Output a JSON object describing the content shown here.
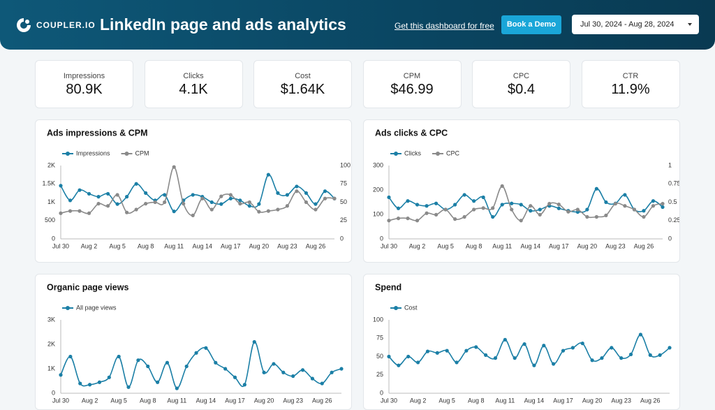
{
  "header": {
    "logo": "COUPLER.IO",
    "title": "LinkedIn page and ads analytics",
    "link": "Get this dashboard for free",
    "button": "Book a Demo",
    "date_range": "Jul 30, 2024 - Aug 28, 2024"
  },
  "kpis": [
    {
      "label": "Impressions",
      "value": "80.9K"
    },
    {
      "label": "Clicks",
      "value": "4.1K"
    },
    {
      "label": "Cost",
      "value": "$1.64K"
    },
    {
      "label": "CPM",
      "value": "$46.99"
    },
    {
      "label": "CPC",
      "value": "$0.4"
    },
    {
      "label": "CTR",
      "value": "11.9%"
    }
  ],
  "chart_data": [
    {
      "type": "line",
      "title": "Ads impressions & CPM",
      "categories": [
        "Jul 30",
        null,
        null,
        "Aug 2",
        null,
        null,
        "Aug 5",
        null,
        null,
        "Aug 8",
        null,
        null,
        "Aug 11",
        null,
        null,
        "Aug 14",
        null,
        null,
        "Aug 17",
        null,
        null,
        "Aug 20",
        null,
        null,
        "Aug 23",
        null,
        null,
        "Aug 26",
        null,
        null
      ],
      "series": [
        {
          "name": "Impressions",
          "color": "#1b7fa6",
          "values": [
            1450,
            1050,
            1330,
            1230,
            1150,
            1230,
            950,
            1150,
            1500,
            1250,
            1050,
            1200,
            750,
            1050,
            1200,
            1150,
            1000,
            950,
            1100,
            1050,
            900,
            950,
            1750,
            1250,
            1200,
            1430,
            1250,
            950,
            1300,
            1100
          ]
        },
        {
          "name": "CPM",
          "color": "#8a8a8a",
          "axis": "y2",
          "values": [
            35,
            38,
            38,
            35,
            48,
            45,
            60,
            36,
            40,
            48,
            50,
            50,
            98,
            48,
            32,
            55,
            40,
            58,
            60,
            48,
            50,
            37,
            38,
            40,
            45,
            65,
            50,
            40,
            55,
            55
          ]
        }
      ],
      "ylim": [
        0,
        2000
      ],
      "yticks": [
        0,
        500,
        {
          "value": 1000,
          "label": "1K"
        },
        {
          "value": 1500,
          "label": "1.5K"
        },
        {
          "value": 2000,
          "label": "2K"
        }
      ],
      "y2lim": [
        0,
        100
      ],
      "y2ticks": [
        0,
        25,
        50,
        75,
        100
      ],
      "legend": "top-left"
    },
    {
      "type": "line",
      "title": "Ads clicks & CPC",
      "categories": [
        "Jul 30",
        null,
        null,
        "Aug 2",
        null,
        null,
        "Aug 5",
        null,
        null,
        "Aug 8",
        null,
        null,
        "Aug 11",
        null,
        null,
        "Aug 14",
        null,
        null,
        "Aug 17",
        null,
        null,
        "Aug 20",
        null,
        null,
        "Aug 23",
        null,
        null,
        "Aug 26",
        null,
        null
      ],
      "series": [
        {
          "name": "Clicks",
          "color": "#1b7fa6",
          "values": [
            170,
            125,
            155,
            140,
            135,
            145,
            120,
            140,
            180,
            155,
            170,
            90,
            140,
            145,
            140,
            115,
            120,
            135,
            125,
            115,
            110,
            120,
            205,
            150,
            145,
            180,
            120,
            115,
            155,
            130
          ]
        },
        {
          "name": "CPC",
          "color": "#8a8a8a",
          "axis": "y2",
          "values": [
            0.25,
            0.28,
            0.28,
            0.25,
            0.35,
            0.33,
            0.4,
            0.27,
            0.3,
            0.4,
            0.42,
            0.42,
            0.72,
            0.4,
            0.25,
            0.45,
            0.33,
            0.48,
            0.47,
            0.37,
            0.4,
            0.3,
            0.3,
            0.32,
            0.48,
            0.45,
            0.4,
            0.3,
            0.45,
            0.48
          ]
        }
      ],
      "ylim": [
        0,
        300
      ],
      "yticks": [
        0,
        100,
        200,
        300
      ],
      "y2lim": [
        0,
        1
      ],
      "y2ticks": [
        0,
        0.25,
        0.5,
        0.75,
        1
      ],
      "legend": "top-left"
    },
    {
      "type": "line",
      "title": "Organic page views",
      "categories": [
        "Jul 30",
        null,
        null,
        "Aug 2",
        null,
        null,
        "Aug 5",
        null,
        null,
        "Aug 8",
        null,
        null,
        "Aug 11",
        null,
        null,
        "Aug 14",
        null,
        null,
        "Aug 17",
        null,
        null,
        "Aug 20",
        null,
        null,
        "Aug 23",
        null,
        null,
        "Aug 26",
        null,
        null
      ],
      "series": [
        {
          "name": "All page views",
          "color": "#1b7fa6",
          "values": [
            750,
            1500,
            400,
            350,
            450,
            650,
            1500,
            250,
            1350,
            1100,
            450,
            1250,
            200,
            1100,
            1650,
            1850,
            1250,
            1000,
            650,
            350,
            2100,
            850,
            1200,
            850,
            700,
            950,
            600,
            400,
            850,
            1000
          ]
        }
      ],
      "ylim": [
        0,
        3000
      ],
      "yticks": [
        0,
        {
          "value": 1000,
          "label": "1K"
        },
        {
          "value": 2000,
          "label": "2K"
        },
        {
          "value": 3000,
          "label": "3K"
        }
      ],
      "legend": "top-left"
    },
    {
      "type": "line",
      "title": "Spend",
      "categories": [
        "Jul 30",
        null,
        null,
        "Aug 2",
        null,
        null,
        "Aug 5",
        null,
        null,
        "Aug 8",
        null,
        null,
        "Aug 11",
        null,
        null,
        "Aug 14",
        null,
        null,
        "Aug 17",
        null,
        null,
        "Aug 20",
        null,
        null,
        "Aug 23",
        null,
        null,
        "Aug 26",
        null,
        null
      ],
      "series": [
        {
          "name": "Cost",
          "color": "#1b7fa6",
          "values": [
            50,
            38,
            50,
            42,
            57,
            55,
            58,
            42,
            58,
            63,
            52,
            48,
            73,
            48,
            67,
            38,
            65,
            40,
            58,
            62,
            68,
            45,
            48,
            62,
            48,
            53,
            80,
            52,
            52,
            62
          ]
        }
      ],
      "ylim": [
        0,
        100
      ],
      "yticks": [
        0,
        25,
        50,
        75,
        100
      ],
      "legend": "top-left"
    }
  ]
}
